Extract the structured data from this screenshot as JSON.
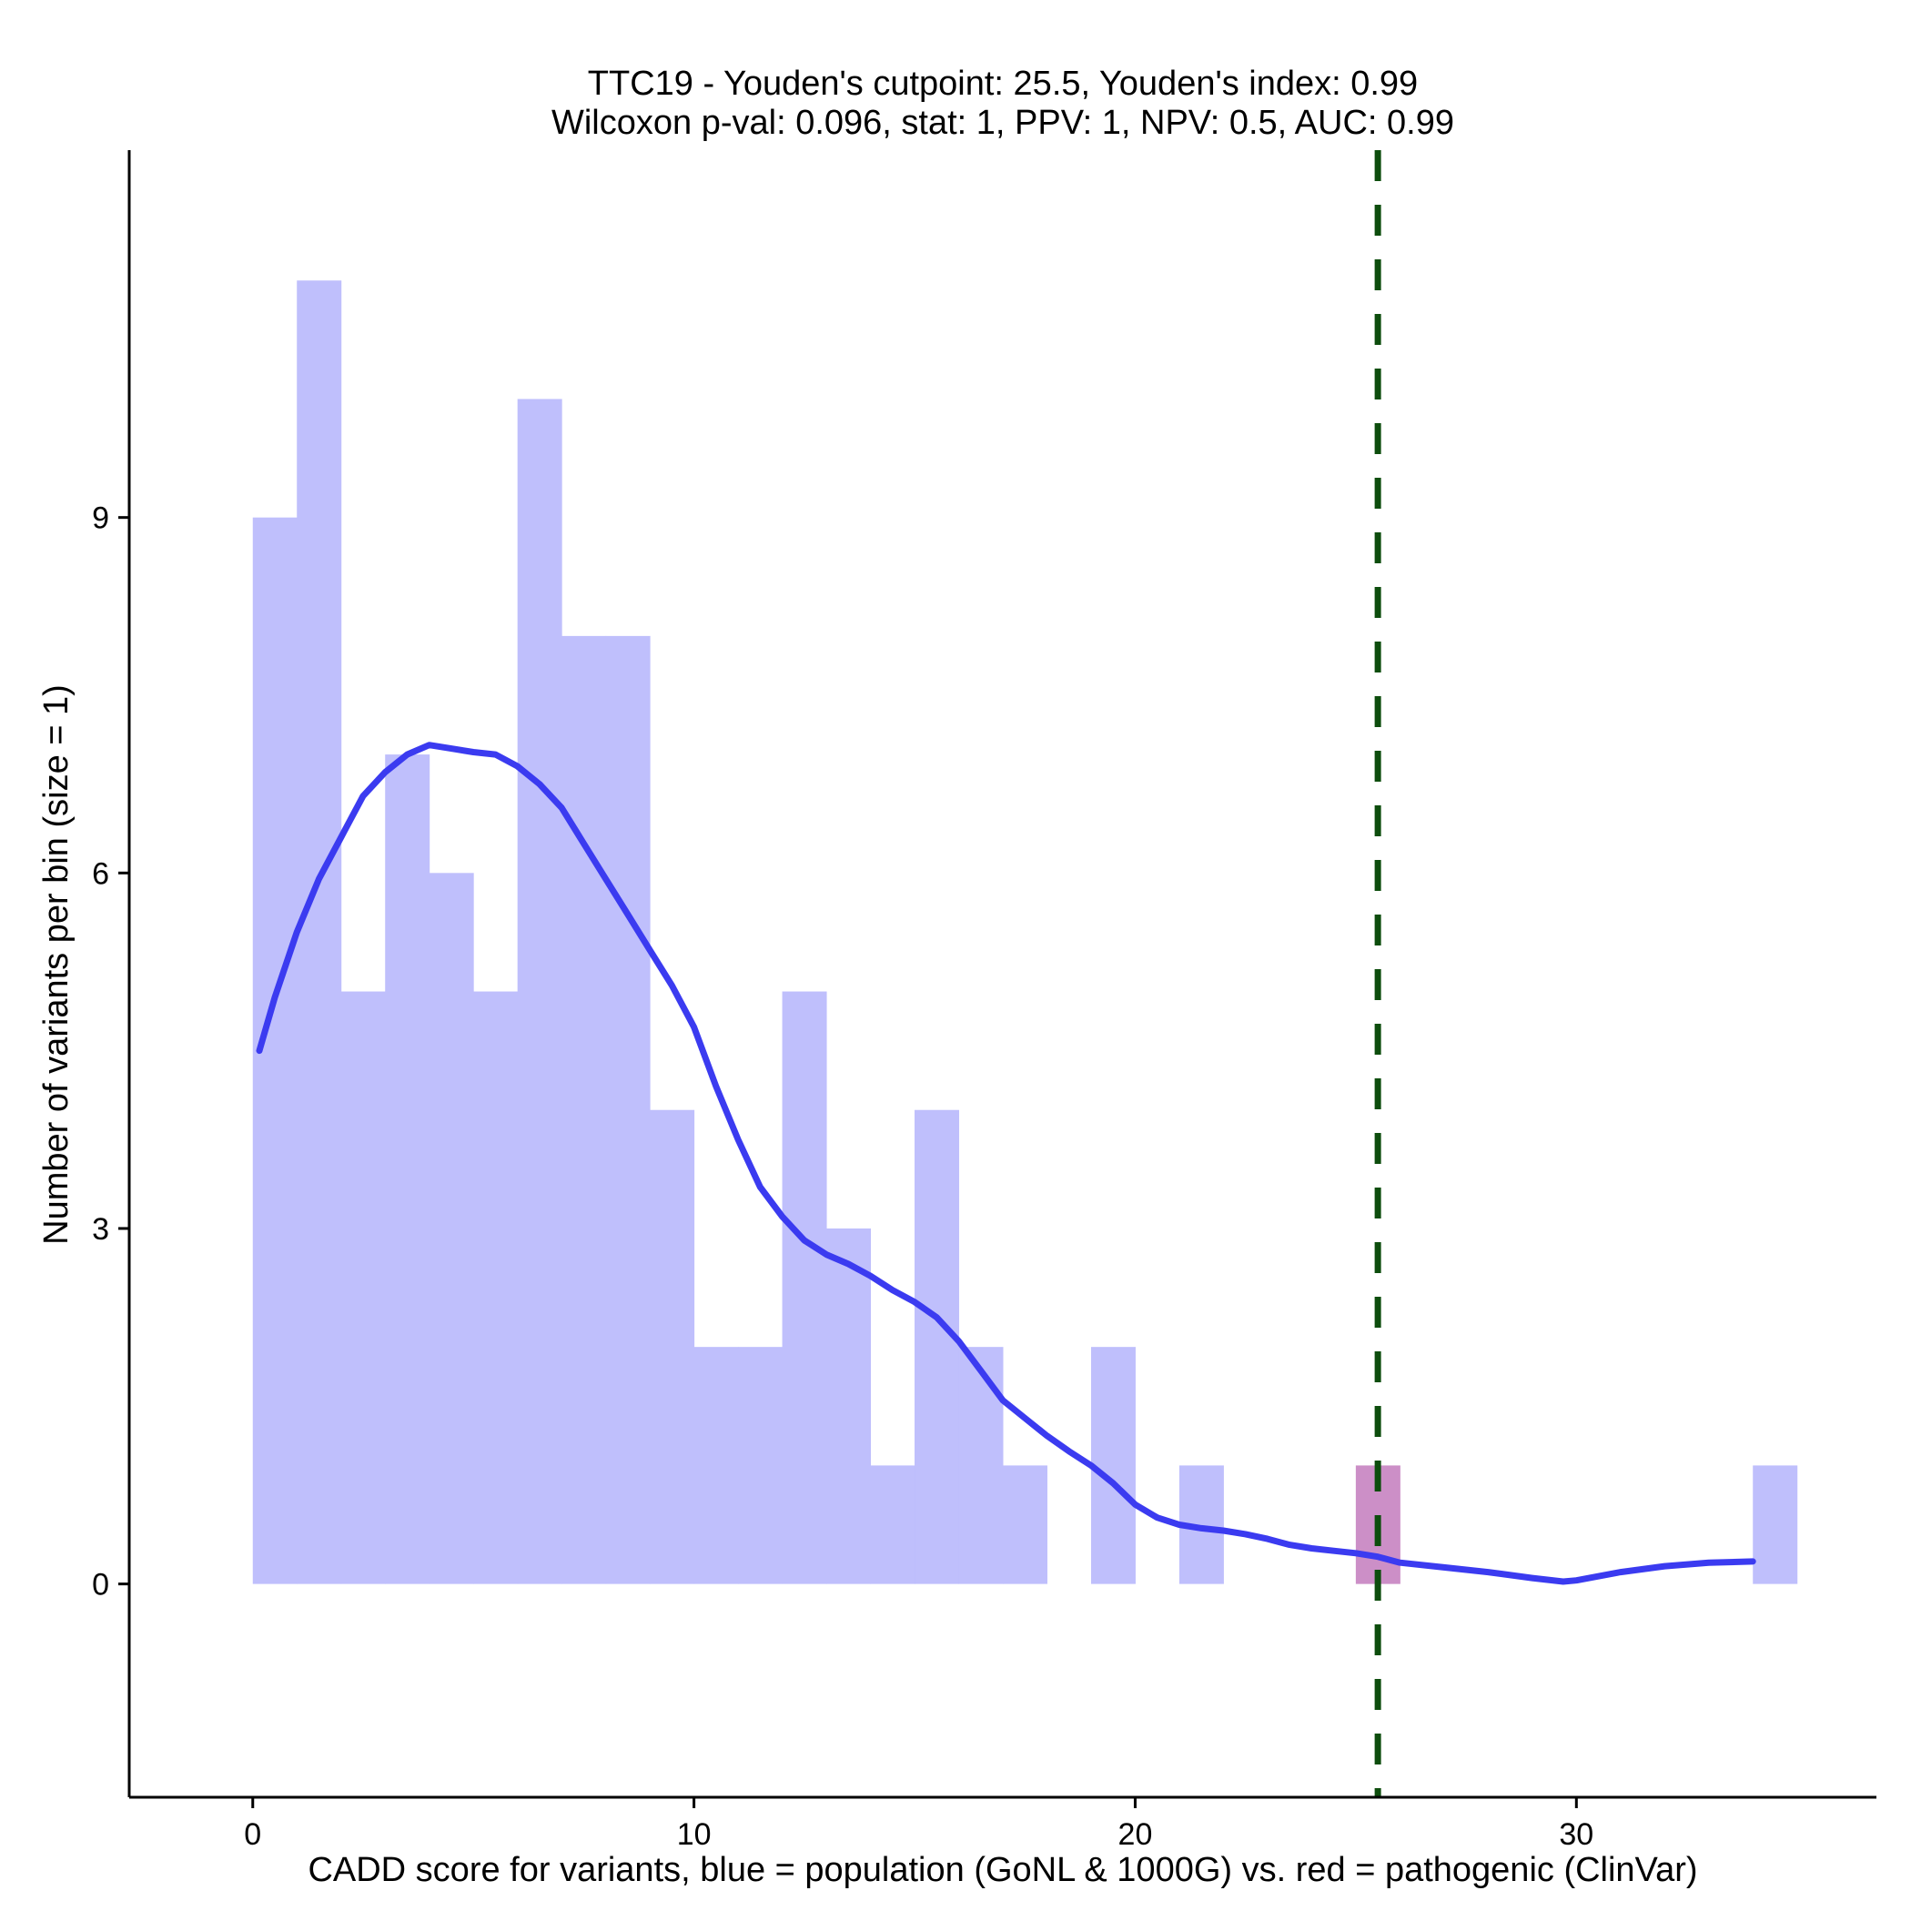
{
  "chart_data": {
    "type": "bar",
    "title_line1": "TTC19 - Youden's cutpoint: 25.5, Youden's index: 0.99",
    "title_line2": "Wilcoxon p-val: 0.096, stat: 1, PPV: 1, NPV: 0.5, AUC: 0.99",
    "xlabel": "CADD score for variants, blue = population (GoNL & 1000G) vs. red = pathogenic (ClinVar)",
    "ylabel": "Number of variants per bin (size = 1)",
    "xlim": [
      -2.8,
      36.8
    ],
    "ylim": [
      -1.8,
      12.1
    ],
    "x_ticks": [
      0,
      10,
      20,
      30
    ],
    "y_ticks": [
      0,
      3,
      6,
      9
    ],
    "bin_width": 1,
    "series": [
      {
        "name": "population",
        "color": "#bfbffc",
        "bins": [
          {
            "x0": 0,
            "count": 9
          },
          {
            "x0": 1,
            "count": 11
          },
          {
            "x0": 2,
            "count": 5
          },
          {
            "x0": 3,
            "count": 7
          },
          {
            "x0": 4,
            "count": 6
          },
          {
            "x0": 5,
            "count": 5
          },
          {
            "x0": 6,
            "count": 10
          },
          {
            "x0": 7,
            "count": 8
          },
          {
            "x0": 8,
            "count": 8
          },
          {
            "x0": 9,
            "count": 4
          },
          {
            "x0": 10,
            "count": 2
          },
          {
            "x0": 11,
            "count": 2
          },
          {
            "x0": 12,
            "count": 5
          },
          {
            "x0": 13,
            "count": 3
          },
          {
            "x0": 14,
            "count": 1
          },
          {
            "x0": 15,
            "count": 4
          },
          {
            "x0": 16,
            "count": 2
          },
          {
            "x0": 17,
            "count": 1
          },
          {
            "x0": 19,
            "count": 2
          },
          {
            "x0": 21,
            "count": 1
          },
          {
            "x0": 34,
            "count": 1
          }
        ]
      },
      {
        "name": "pathogenic",
        "color": "#cc8fc7",
        "bins": [
          {
            "x0": 25,
            "count": 1
          }
        ]
      }
    ],
    "density_curve": {
      "color": "#3b3bf0",
      "points": [
        [
          0.15,
          4.5
        ],
        [
          0.5,
          4.95
        ],
        [
          1.0,
          5.5
        ],
        [
          1.5,
          5.95
        ],
        [
          2.0,
          6.3
        ],
        [
          2.5,
          6.65
        ],
        [
          3.0,
          6.85
        ],
        [
          3.5,
          7.0
        ],
        [
          4.0,
          7.08
        ],
        [
          4.5,
          7.05
        ],
        [
          5.0,
          7.02
        ],
        [
          5.5,
          7.0
        ],
        [
          6.0,
          6.9
        ],
        [
          6.5,
          6.75
        ],
        [
          7.0,
          6.55
        ],
        [
          7.5,
          6.25
        ],
        [
          8.0,
          5.95
        ],
        [
          8.5,
          5.65
        ],
        [
          9.0,
          5.35
        ],
        [
          9.5,
          5.05
        ],
        [
          10.0,
          4.7
        ],
        [
          10.5,
          4.2
        ],
        [
          11.0,
          3.75
        ],
        [
          11.5,
          3.35
        ],
        [
          12.0,
          3.1
        ],
        [
          12.5,
          2.9
        ],
        [
          13.0,
          2.78
        ],
        [
          13.5,
          2.7
        ],
        [
          14.0,
          2.6
        ],
        [
          14.5,
          2.48
        ],
        [
          15.0,
          2.38
        ],
        [
          15.5,
          2.25
        ],
        [
          16.0,
          2.05
        ],
        [
          16.5,
          1.8
        ],
        [
          17.0,
          1.55
        ],
        [
          17.5,
          1.4
        ],
        [
          18.0,
          1.25
        ],
        [
          18.5,
          1.12
        ],
        [
          19.0,
          1.0
        ],
        [
          19.5,
          0.85
        ],
        [
          20.0,
          0.67
        ],
        [
          20.5,
          0.56
        ],
        [
          21.0,
          0.5
        ],
        [
          21.5,
          0.47
        ],
        [
          22.0,
          0.45
        ],
        [
          22.5,
          0.42
        ],
        [
          23.0,
          0.38
        ],
        [
          23.5,
          0.33
        ],
        [
          24.0,
          0.3
        ],
        [
          24.5,
          0.28
        ],
        [
          25.0,
          0.26
        ],
        [
          25.5,
          0.23
        ],
        [
          26.0,
          0.18
        ],
        [
          27.0,
          0.14
        ],
        [
          28.0,
          0.1
        ],
        [
          29.0,
          0.05
        ],
        [
          29.7,
          0.02
        ],
        [
          30.0,
          0.03
        ],
        [
          31.0,
          0.1
        ],
        [
          32.0,
          0.15
        ],
        [
          33.0,
          0.18
        ],
        [
          34.0,
          0.19
        ]
      ]
    },
    "cutpoint": {
      "x": 25.5,
      "color": "#0d4d0d"
    }
  }
}
